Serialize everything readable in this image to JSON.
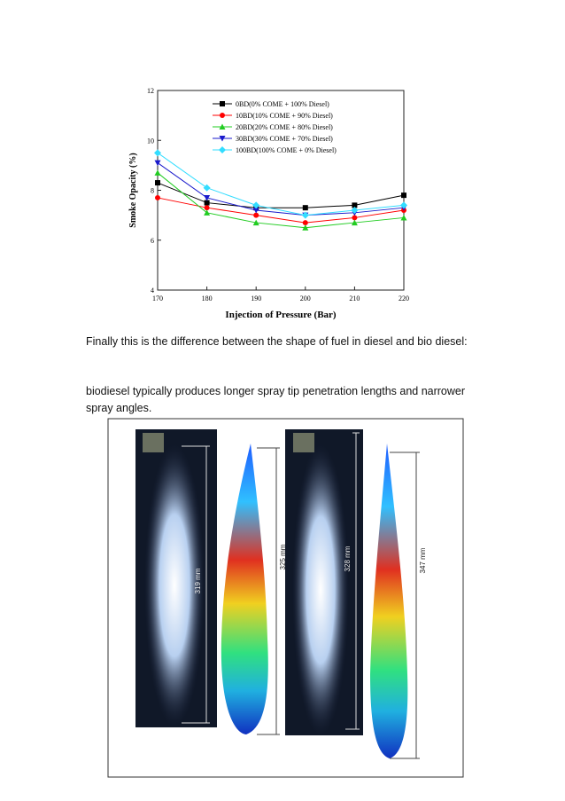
{
  "chart_data": {
    "type": "line",
    "x_label": "Injection of Pressure (Bar)",
    "y_label": "Smoke Opacity (%)",
    "x": [
      170,
      180,
      190,
      200,
      210,
      220
    ],
    "xlim": [
      170,
      220
    ],
    "xticks": [
      170,
      180,
      190,
      200,
      210,
      220
    ],
    "ylim": [
      4,
      12
    ],
    "yticks": [
      4,
      6,
      8,
      10,
      12
    ],
    "series": [
      {
        "name": "0BD(0% COME + 100% Diesel)",
        "color": "#000000",
        "marker": "square",
        "values": [
          8.3,
          7.5,
          7.3,
          7.3,
          7.4,
          7.8
        ]
      },
      {
        "name": "10BD(10% COME + 90% Diesel)",
        "color": "#ff0000",
        "marker": "circle",
        "values": [
          7.7,
          7.3,
          7.0,
          6.7,
          6.9,
          7.2
        ]
      },
      {
        "name": "20BD(20% COME + 80% Diesel)",
        "color": "#22cc22",
        "marker": "triangle-up",
        "values": [
          8.7,
          7.1,
          6.7,
          6.5,
          6.7,
          6.9
        ]
      },
      {
        "name": "30BD(30% COME + 70% Diesel)",
        "color": "#1a1acc",
        "marker": "triangle-down",
        "values": [
          9.1,
          7.7,
          7.2,
          7.0,
          7.1,
          7.3
        ]
      },
      {
        "name": "100BD(100% COME + 0% Diesel)",
        "color": "#33ddff",
        "marker": "diamond",
        "values": [
          9.5,
          8.1,
          7.4,
          7.0,
          7.2,
          7.4
        ]
      }
    ]
  },
  "paragraphs": [
    "Finally this is the difference between the shape of fuel in diesel and bio diesel:",
    "biodiesel typically produces longer spray tip penetration lengths and narrower spray angles."
  ],
  "figure": {
    "labels": [
      "319 mm",
      "325 mm",
      "328 mm",
      "347 mm"
    ]
  }
}
